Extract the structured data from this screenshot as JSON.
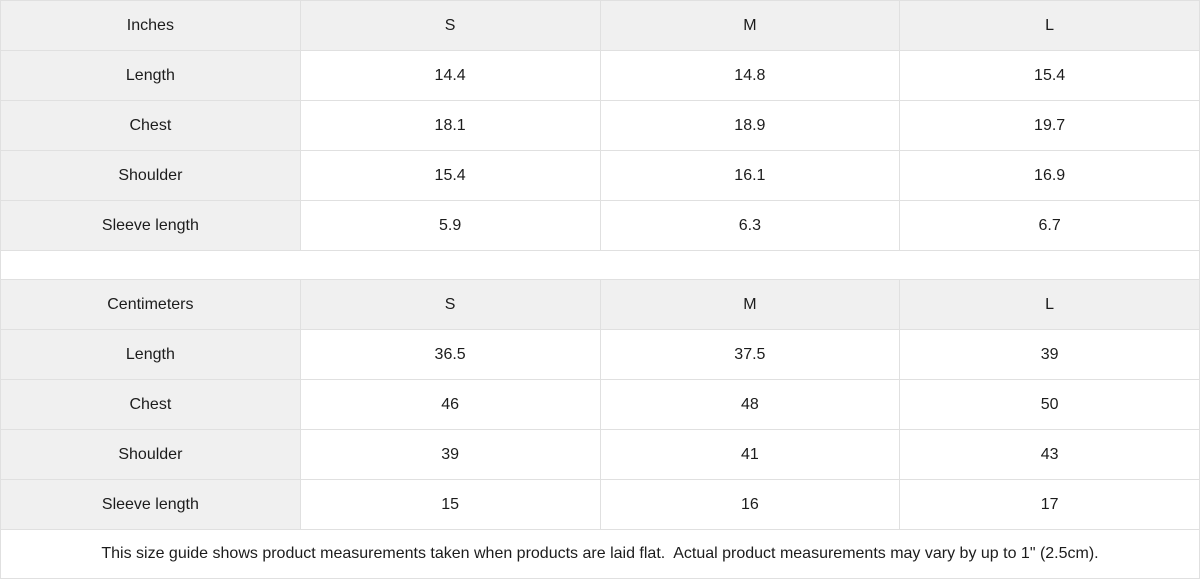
{
  "colors": {
    "header_bg": "#f0f0f0",
    "label_bg": "#f0f0f0",
    "cell_bg": "#ffffff",
    "border": "#e0e0e0",
    "text": "#1c1c1c"
  },
  "tables": [
    {
      "unit_label": "Inches",
      "columns": [
        "S",
        "M",
        "L"
      ],
      "rows": [
        {
          "label": "Length",
          "values": [
            "14.4",
            "14.8",
            "15.4"
          ]
        },
        {
          "label": "Chest",
          "values": [
            "18.1",
            "18.9",
            "19.7"
          ]
        },
        {
          "label": "Shoulder",
          "values": [
            "15.4",
            "16.1",
            "16.9"
          ]
        },
        {
          "label": "Sleeve length",
          "values": [
            "5.9",
            "6.3",
            "6.7"
          ]
        }
      ]
    },
    {
      "unit_label": "Centimeters",
      "columns": [
        "S",
        "M",
        "L"
      ],
      "rows": [
        {
          "label": "Length",
          "values": [
            "36.5",
            "37.5",
            "39"
          ]
        },
        {
          "label": "Chest",
          "values": [
            "46",
            "48",
            "50"
          ]
        },
        {
          "label": "Shoulder",
          "values": [
            "39",
            "41",
            "43"
          ]
        },
        {
          "label": "Sleeve length",
          "values": [
            "15",
            "16",
            "17"
          ]
        }
      ]
    }
  ],
  "footer": {
    "note": "This size guide shows product measurements taken when products are laid flat.  Actual product measurements may vary by up to 1\" (2.5cm)."
  }
}
